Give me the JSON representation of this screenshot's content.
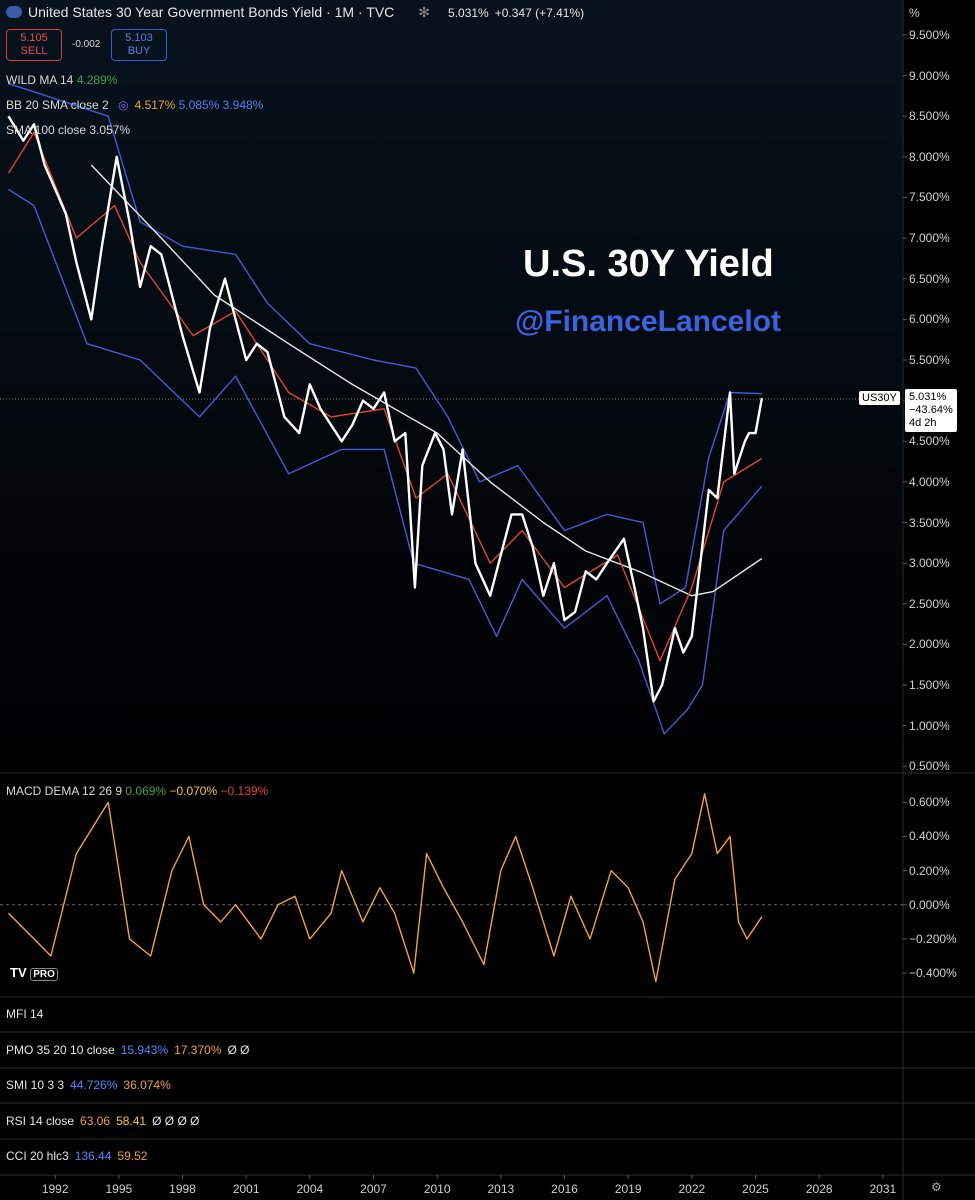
{
  "header": {
    "title": "United States 30 Year Government Bonds Yield · 1M · TVC",
    "last": "5.031%",
    "change": "+0.347 (+7.41%)"
  },
  "trade": {
    "sell_price": "5.105",
    "sell": "SELL",
    "spread": "-0.002",
    "buy_price": "5.103",
    "buy": "BUY"
  },
  "legends": {
    "wild": {
      "label": "WILD MA 14",
      "values": [
        "4.289%"
      ]
    },
    "bb": {
      "label": "BB 20 SMA close 2",
      "values": [
        "4.517%",
        "5.085%",
        "3.948%"
      ]
    },
    "sma": {
      "label": "SMA 100 close",
      "values": [
        "3.057%"
      ]
    }
  },
  "overlay": {
    "title": "U.S. 30Y Yield",
    "handle": "@FinanceLancelot"
  },
  "price_tag": {
    "symbol": "US30Y",
    "price": "5.031%",
    "change": "−43.64%",
    "countdown": "4d 2h"
  },
  "main_chart": {
    "type": "line",
    "axis_unit": "%",
    "xlim": [
      1989.4,
      2031.95
    ],
    "ylim": [
      0.43,
      9.93
    ],
    "xticks": [
      1992,
      1995,
      1998,
      2001,
      2004,
      2007,
      2010,
      2013,
      2016,
      2019,
      2022,
      2025,
      2028,
      2031
    ],
    "yticks": [
      {
        "value": 9.5,
        "label": "9.500%"
      },
      {
        "value": 9,
        "label": "9.000%"
      },
      {
        "value": 8.5,
        "label": "8.500%"
      },
      {
        "value": 8,
        "label": "8.000%"
      },
      {
        "value": 7.5,
        "label": "7.500%"
      },
      {
        "value": 7,
        "label": "7.000%"
      },
      {
        "value": 6.5,
        "label": "6.500%"
      },
      {
        "value": 6,
        "label": "6.000%"
      },
      {
        "value": 5.5,
        "label": "5.500%"
      },
      {
        "value": 5,
        "label": "5.000%"
      },
      {
        "value": 4.5,
        "label": "4.500%"
      },
      {
        "value": 4,
        "label": "4.000%"
      },
      {
        "value": 3.5,
        "label": "3.500%"
      },
      {
        "value": 3,
        "label": "3.000%"
      },
      {
        "value": 2.5,
        "label": "2.500%"
      },
      {
        "value": 2,
        "label": "2.000%"
      },
      {
        "value": 1.5,
        "label": "1.500%"
      },
      {
        "value": 1,
        "label": "1.000%"
      },
      {
        "value": 0.5,
        "label": "0.500%"
      }
    ],
    "series": [
      {
        "name": "BB upper",
        "color": "#3f5fd6",
        "x": [
          1989.8,
          1991,
          1994.5,
          1996,
          1998,
          2000.5,
          2002,
          2004,
          2007,
          2009,
          2010.5,
          2012,
          2013.8,
          2016,
          2018,
          2019.7,
          2020.5,
          2021.7,
          2022.8,
          2023.8,
          2025.3
        ],
        "values": [
          8.9,
          8.8,
          8.5,
          7.2,
          6.9,
          6.8,
          6.2,
          5.7,
          5.5,
          5.4,
          4.8,
          4.0,
          4.2,
          3.4,
          3.6,
          3.5,
          2.5,
          2.7,
          4.3,
          5.1,
          5.085
        ]
      },
      {
        "name": "BB lower",
        "color": "#3f5fd6",
        "x": [
          1989.8,
          1991,
          1993.5,
          1996,
          1998.8,
          2000.5,
          2003,
          2005.5,
          2007.5,
          2008.9,
          2011.5,
          2012.8,
          2014,
          2016,
          2018,
          2019.5,
          2020.7,
          2021.8,
          2022.5,
          2023.5,
          2025.3
        ],
        "values": [
          7.6,
          7.4,
          5.7,
          5.5,
          4.8,
          5.3,
          4.1,
          4.4,
          4.4,
          3.0,
          2.8,
          2.1,
          2.8,
          2.2,
          2.6,
          1.8,
          0.9,
          1.2,
          1.5,
          3.4,
          3.948
        ]
      },
      {
        "name": "SMA 100",
        "color": "#e8e8e8",
        "x": [
          1993.7,
          1997,
          1999.5,
          2003,
          2006,
          2008,
          2010,
          2012.5,
          2015,
          2017,
          2019.5,
          2022,
          2023,
          2025.3
        ],
        "values": [
          7.9,
          7.0,
          6.3,
          5.7,
          5.2,
          4.9,
          4.6,
          4.0,
          3.5,
          3.15,
          2.9,
          2.6,
          2.65,
          3.057
        ]
      },
      {
        "name": "WILD MA",
        "color": "#e2452f",
        "x": [
          1989.8,
          1991,
          1993,
          1994.8,
          1996,
          1998.5,
          2000.5,
          2003,
          2005,
          2007.5,
          2009,
          2010.5,
          2012.5,
          2014,
          2016,
          2018.5,
          2020.5,
          2022,
          2023.5,
          2025.3
        ],
        "values": [
          7.8,
          8.3,
          7.0,
          7.4,
          6.7,
          5.8,
          6.1,
          5.1,
          4.8,
          4.9,
          3.8,
          4.1,
          3.0,
          3.4,
          2.7,
          3.1,
          1.8,
          2.7,
          4.0,
          4.289
        ]
      },
      {
        "name": "US30Y",
        "color": "#ffffff",
        "x": [
          1989.8,
          1990.5,
          1991,
          1991.5,
          1992,
          1992.5,
          1993,
          1993.7,
          1994.2,
          1994.9,
          1995.5,
          1996,
          1996.5,
          1997,
          1997.5,
          1998,
          1998.8,
          1999.3,
          2000,
          2000.5,
          2001,
          2001.5,
          2002,
          2002.8,
          2003.5,
          2004,
          2004.5,
          2005.5,
          2006,
          2006.5,
          2007,
          2007.5,
          2008,
          2008.5,
          2008.95,
          2009.3,
          2009.9,
          2010.3,
          2010.7,
          2011.2,
          2011.8,
          2012.5,
          2013,
          2013.5,
          2014,
          2014.5,
          2015,
          2015.5,
          2016,
          2016.5,
          2017,
          2017.5,
          2018,
          2018.8,
          2019.3,
          2019.7,
          2020.2,
          2020.6,
          2021.2,
          2021.6,
          2022,
          2022.4,
          2022.8,
          2023.2,
          2023.8,
          2024.0,
          2024.5,
          2024.7,
          2025.0,
          2025.3
        ],
        "values": [
          8.5,
          8.2,
          8.4,
          7.9,
          7.6,
          7.3,
          6.7,
          6.0,
          6.9,
          8.0,
          7.2,
          6.4,
          6.9,
          6.8,
          6.3,
          5.8,
          5.1,
          5.9,
          6.5,
          6.0,
          5.5,
          5.7,
          5.6,
          4.8,
          4.6,
          5.2,
          4.9,
          4.5,
          4.7,
          5.0,
          4.9,
          5.1,
          4.5,
          4.6,
          2.7,
          4.2,
          4.6,
          4.4,
          3.6,
          4.4,
          3.0,
          2.6,
          3.1,
          3.6,
          3.6,
          3.2,
          2.6,
          3.0,
          2.3,
          2.4,
          2.9,
          2.8,
          3.0,
          3.3,
          2.7,
          2.2,
          1.3,
          1.5,
          2.2,
          1.9,
          2.1,
          3.0,
          3.9,
          3.8,
          5.1,
          4.1,
          4.5,
          4.6,
          4.6,
          5.031
        ]
      }
    ]
  },
  "macd_chart": {
    "type": "line",
    "label": "MACD DEMA 12 26 9",
    "values_text": [
      "0.069%",
      "−0.070%",
      "−0.139%"
    ],
    "xlim": [
      1989.4,
      2031.95
    ],
    "ylim": [
      -0.54,
      0.76
    ],
    "yticks": [
      {
        "value": 0.6,
        "label": "0.600%"
      },
      {
        "value": 0.4,
        "label": "0.400%"
      },
      {
        "value": 0.2,
        "label": "0.200%"
      },
      {
        "value": 0,
        "label": "0.000%"
      },
      {
        "value": -0.2,
        "label": "−0.200%"
      },
      {
        "value": -0.4,
        "label": "−0.400%"
      }
    ],
    "series": [
      {
        "name": "MACD",
        "color": "#f5a142",
        "x": [
          1989.8,
          1991,
          1991.8,
          1993,
          1994.5,
          1995.5,
          1996.5,
          1997.5,
          1998.3,
          1999,
          1999.8,
          2000.5,
          2001.7,
          2002.5,
          2003.3,
          2004,
          2005,
          2005.5,
          2006.5,
          2007.3,
          2008,
          2008.9,
          2009.5,
          2010.3,
          2011.2,
          2012.2,
          2013,
          2013.7,
          2014.5,
          2015.5,
          2016.3,
          2017.2,
          2018.2,
          2019,
          2019.7,
          2020.3,
          2021.2,
          2022,
          2022.6,
          2023.2,
          2023.8,
          2024.2,
          2024.6,
          2025.3
        ],
        "values": [
          -0.05,
          -0.2,
          -0.3,
          0.3,
          0.6,
          -0.2,
          -0.3,
          0.2,
          0.4,
          0.0,
          -0.1,
          0.0,
          -0.2,
          0.0,
          0.05,
          -0.2,
          -0.05,
          0.2,
          -0.1,
          0.1,
          -0.05,
          -0.4,
          0.3,
          0.1,
          -0.1,
          -0.35,
          0.2,
          0.4,
          0.1,
          -0.3,
          0.05,
          -0.2,
          0.2,
          0.1,
          -0.1,
          -0.45,
          0.15,
          0.3,
          0.65,
          0.3,
          0.4,
          -0.1,
          -0.2,
          -0.07
        ]
      }
    ],
    "brand": "PRO"
  },
  "panes": [
    {
      "label": "MFI 14",
      "values": []
    },
    {
      "label": "PMO 35 20 10 close",
      "values": [
        "15.943%",
        "17.370%"
      ],
      "extra": "Ø Ø"
    },
    {
      "label": "SMI 10 3 3",
      "values": [
        "44.726%",
        "36.074%"
      ]
    },
    {
      "label": "RSI 14 close",
      "values": [
        "63.06",
        "58.41"
      ],
      "extra": "Ø Ø Ø Ø"
    },
    {
      "label": "CCI 20 hlc3",
      "values": [
        "136.44",
        "59.52"
      ]
    }
  ]
}
